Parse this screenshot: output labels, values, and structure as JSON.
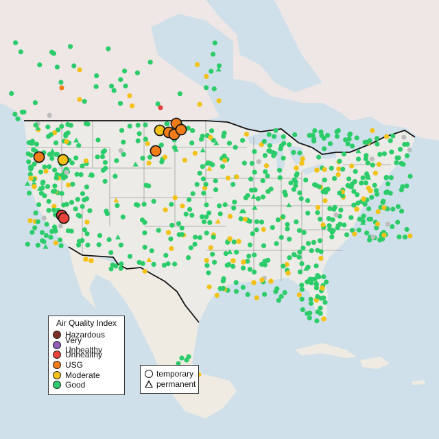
{
  "legend": {
    "title": "Air Quality Index",
    "items": [
      {
        "label": "Hazardous",
        "color": "#7e2f24"
      },
      {
        "label": "Very Unhealthy",
        "color": "#8e5bb5"
      },
      {
        "label": "Unhealthy",
        "color": "#e8433a"
      },
      {
        "label": "USG",
        "color": "#f07d1a"
      },
      {
        "label": "Moderate",
        "color": "#f2c218"
      },
      {
        "label": "Good",
        "color": "#2dcc6a"
      }
    ]
  },
  "monitor_type_legend": {
    "items": [
      {
        "label": "temporary",
        "shape": "circle"
      },
      {
        "label": "permanent",
        "shape": "triangle"
      }
    ]
  },
  "colors": {
    "water": "#cfe0ea",
    "land": "#ecebe7",
    "canada_land": "#efe7e6",
    "mexico_land": "#efebe2",
    "border": "#111111",
    "state_lines": "#9c9c9c",
    "no_data": "#bdbdbd"
  }
}
